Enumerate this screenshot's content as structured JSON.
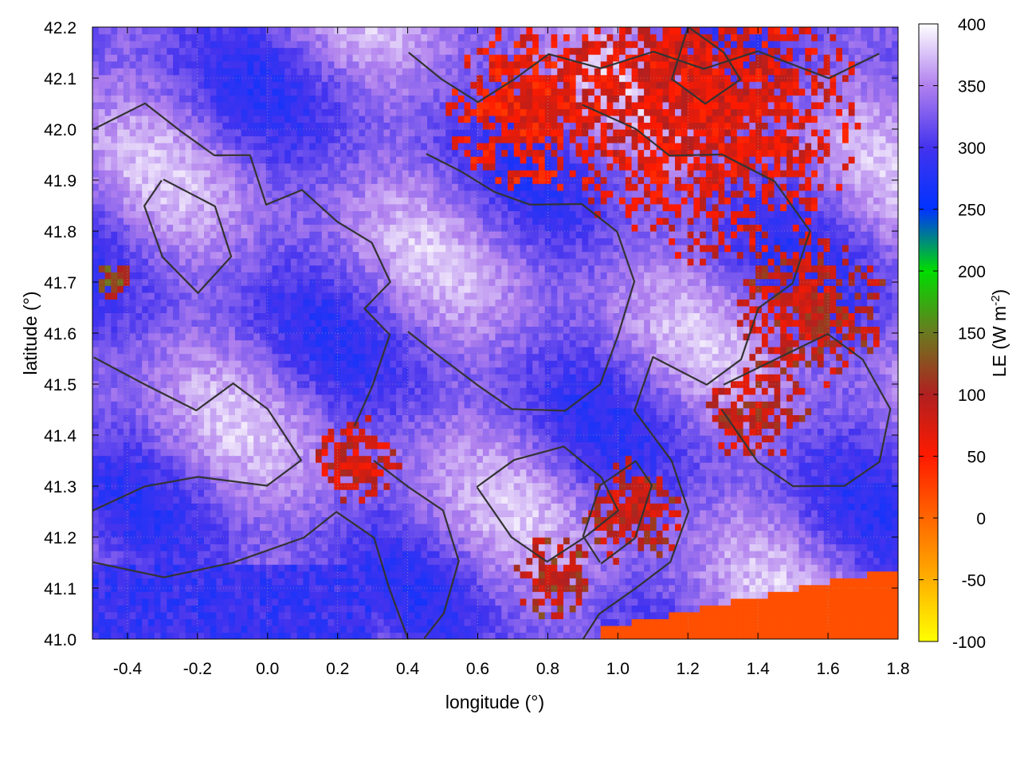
{
  "chart_data": {
    "type": "heatmap",
    "title": "",
    "xlabel": "longitude (°)",
    "ylabel": "latitude (°)",
    "colorbar_label": "LE (W m",
    "colorbar_label_sup": "-2",
    "colorbar_label_end": ")",
    "xlim": [
      -0.5,
      1.8
    ],
    "ylim": [
      41.0,
      42.2
    ],
    "x_ticks": [
      "-0.4",
      "-0.2",
      "0.0",
      "0.2",
      "0.4",
      "0.6",
      "0.8",
      "1.0",
      "1.2",
      "1.4",
      "1.6",
      "1.8"
    ],
    "x_tick_values": [
      -0.4,
      -0.2,
      0.0,
      0.2,
      0.4,
      0.6,
      0.8,
      1.0,
      1.2,
      1.4,
      1.6,
      1.8
    ],
    "y_ticks": [
      "41.0",
      "41.1",
      "41.2",
      "41.3",
      "41.4",
      "41.5",
      "41.6",
      "41.7",
      "41.8",
      "41.9",
      "42.0",
      "42.1",
      "42.2"
    ],
    "y_tick_values": [
      41.0,
      41.1,
      41.2,
      41.3,
      41.4,
      41.5,
      41.6,
      41.7,
      41.8,
      41.9,
      42.0,
      42.1,
      42.2
    ],
    "colorbar_ticks": [
      "400",
      "350",
      "300",
      "250",
      "200",
      "150",
      "100",
      "50",
      "0",
      "-50",
      "-100"
    ],
    "colorbar_tick_values": [
      400,
      350,
      300,
      250,
      200,
      150,
      100,
      50,
      0,
      -50,
      -100
    ],
    "colorbar_range": [
      -100,
      400
    ],
    "colormap": [
      {
        "value": -100,
        "color": "#ffff00"
      },
      {
        "value": -50,
        "color": "#ffb000"
      },
      {
        "value": 0,
        "color": "#ff6600"
      },
      {
        "value": 50,
        "color": "#ff1a00"
      },
      {
        "value": 100,
        "color": "#b02020"
      },
      {
        "value": 150,
        "color": "#6a7a20"
      },
      {
        "value": 200,
        "color": "#00dd00"
      },
      {
        "value": 250,
        "color": "#0033ff"
      },
      {
        "value": 300,
        "color": "#4433ee"
      },
      {
        "value": 350,
        "color": "#b080ee"
      },
      {
        "value": 400,
        "color": "#ffffff"
      }
    ],
    "grid": true,
    "legend": "colorbar-right",
    "overlay": "black terrain contour lines",
    "sea_region": {
      "description": "uniform LE ≈ 15 W m-2 in lower-right (sea)",
      "value": 15
    }
  }
}
